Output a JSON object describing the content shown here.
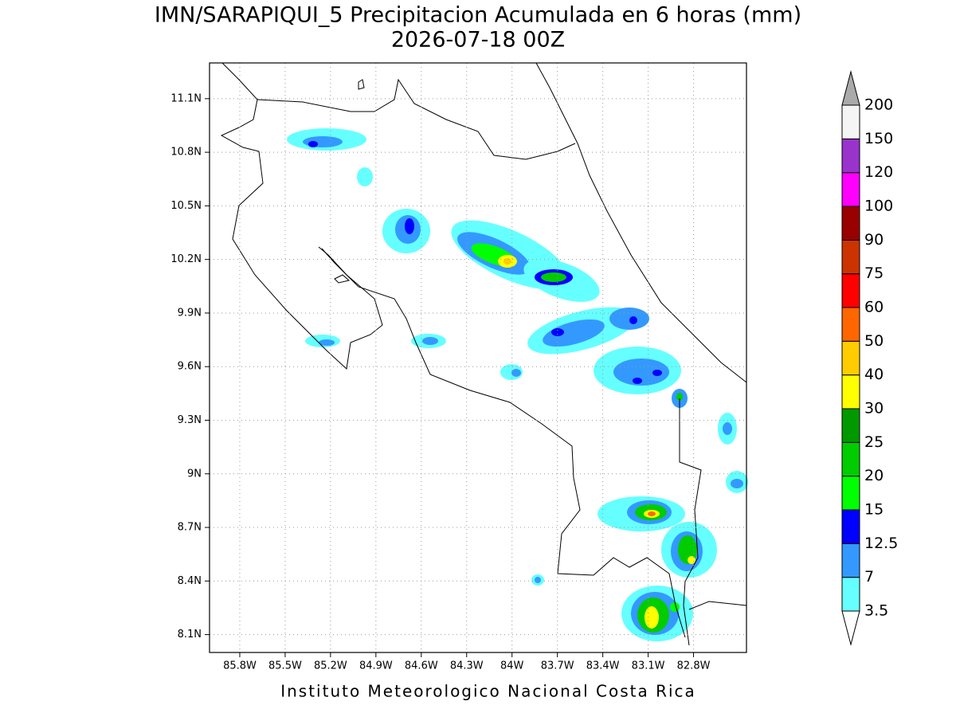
{
  "title": "IMN/SARAPIQUI_5 Precipitacion Acumulada en 6 horas (mm)",
  "subtitle": "2026-07-18 00Z",
  "footer": "Instituto Meteorologico Nacional Costa Rica",
  "map": {
    "xlim": [
      -86.0,
      -82.45
    ],
    "ylim": [
      8.0,
      11.3
    ],
    "grid": true,
    "lon_ticks": [
      {
        "value": -85.8,
        "label": "85.8W"
      },
      {
        "value": -85.5,
        "label": "85.5W"
      },
      {
        "value": -85.2,
        "label": "85.2W"
      },
      {
        "value": -84.9,
        "label": "84.9W"
      },
      {
        "value": -84.6,
        "label": "84.6W"
      },
      {
        "value": -84.3,
        "label": "84.3W"
      },
      {
        "value": -84.0,
        "label": "84W"
      },
      {
        "value": -83.7,
        "label": "83.7W"
      },
      {
        "value": -83.4,
        "label": "83.4W"
      },
      {
        "value": -83.1,
        "label": "83.1W"
      },
      {
        "value": -82.8,
        "label": "82.8W"
      }
    ],
    "lat_ticks": [
      {
        "value": 8.1,
        "label": "8.1N"
      },
      {
        "value": 8.4,
        "label": "8.4N"
      },
      {
        "value": 8.7,
        "label": "8.7N"
      },
      {
        "value": 9.0,
        "label": "9N"
      },
      {
        "value": 9.3,
        "label": "9.3N"
      },
      {
        "value": 9.6,
        "label": "9.6N"
      },
      {
        "value": 9.9,
        "label": "9.9N"
      },
      {
        "value": 10.2,
        "label": "10.2N"
      },
      {
        "value": 10.5,
        "label": "10.5N"
      },
      {
        "value": 10.8,
        "label": "10.8N"
      },
      {
        "value": 11.1,
        "label": "11.1N"
      }
    ]
  },
  "colorbar": {
    "levels": [
      3.5,
      7,
      12.5,
      15,
      20,
      25,
      30,
      40,
      50,
      60,
      75,
      90,
      100,
      120,
      150,
      200
    ],
    "colors": [
      "#66ffff",
      "#3399ff",
      "#0000ff",
      "#00ff00",
      "#00cc00",
      "#009900",
      "#ffff00",
      "#ffcc00",
      "#ff6600",
      "#ff0000",
      "#cc3300",
      "#990000",
      "#ff00ff",
      "#9933cc",
      "#f5f5f5"
    ],
    "over_color": "#aaaaaa",
    "under_color": "#ffffff"
  }
}
